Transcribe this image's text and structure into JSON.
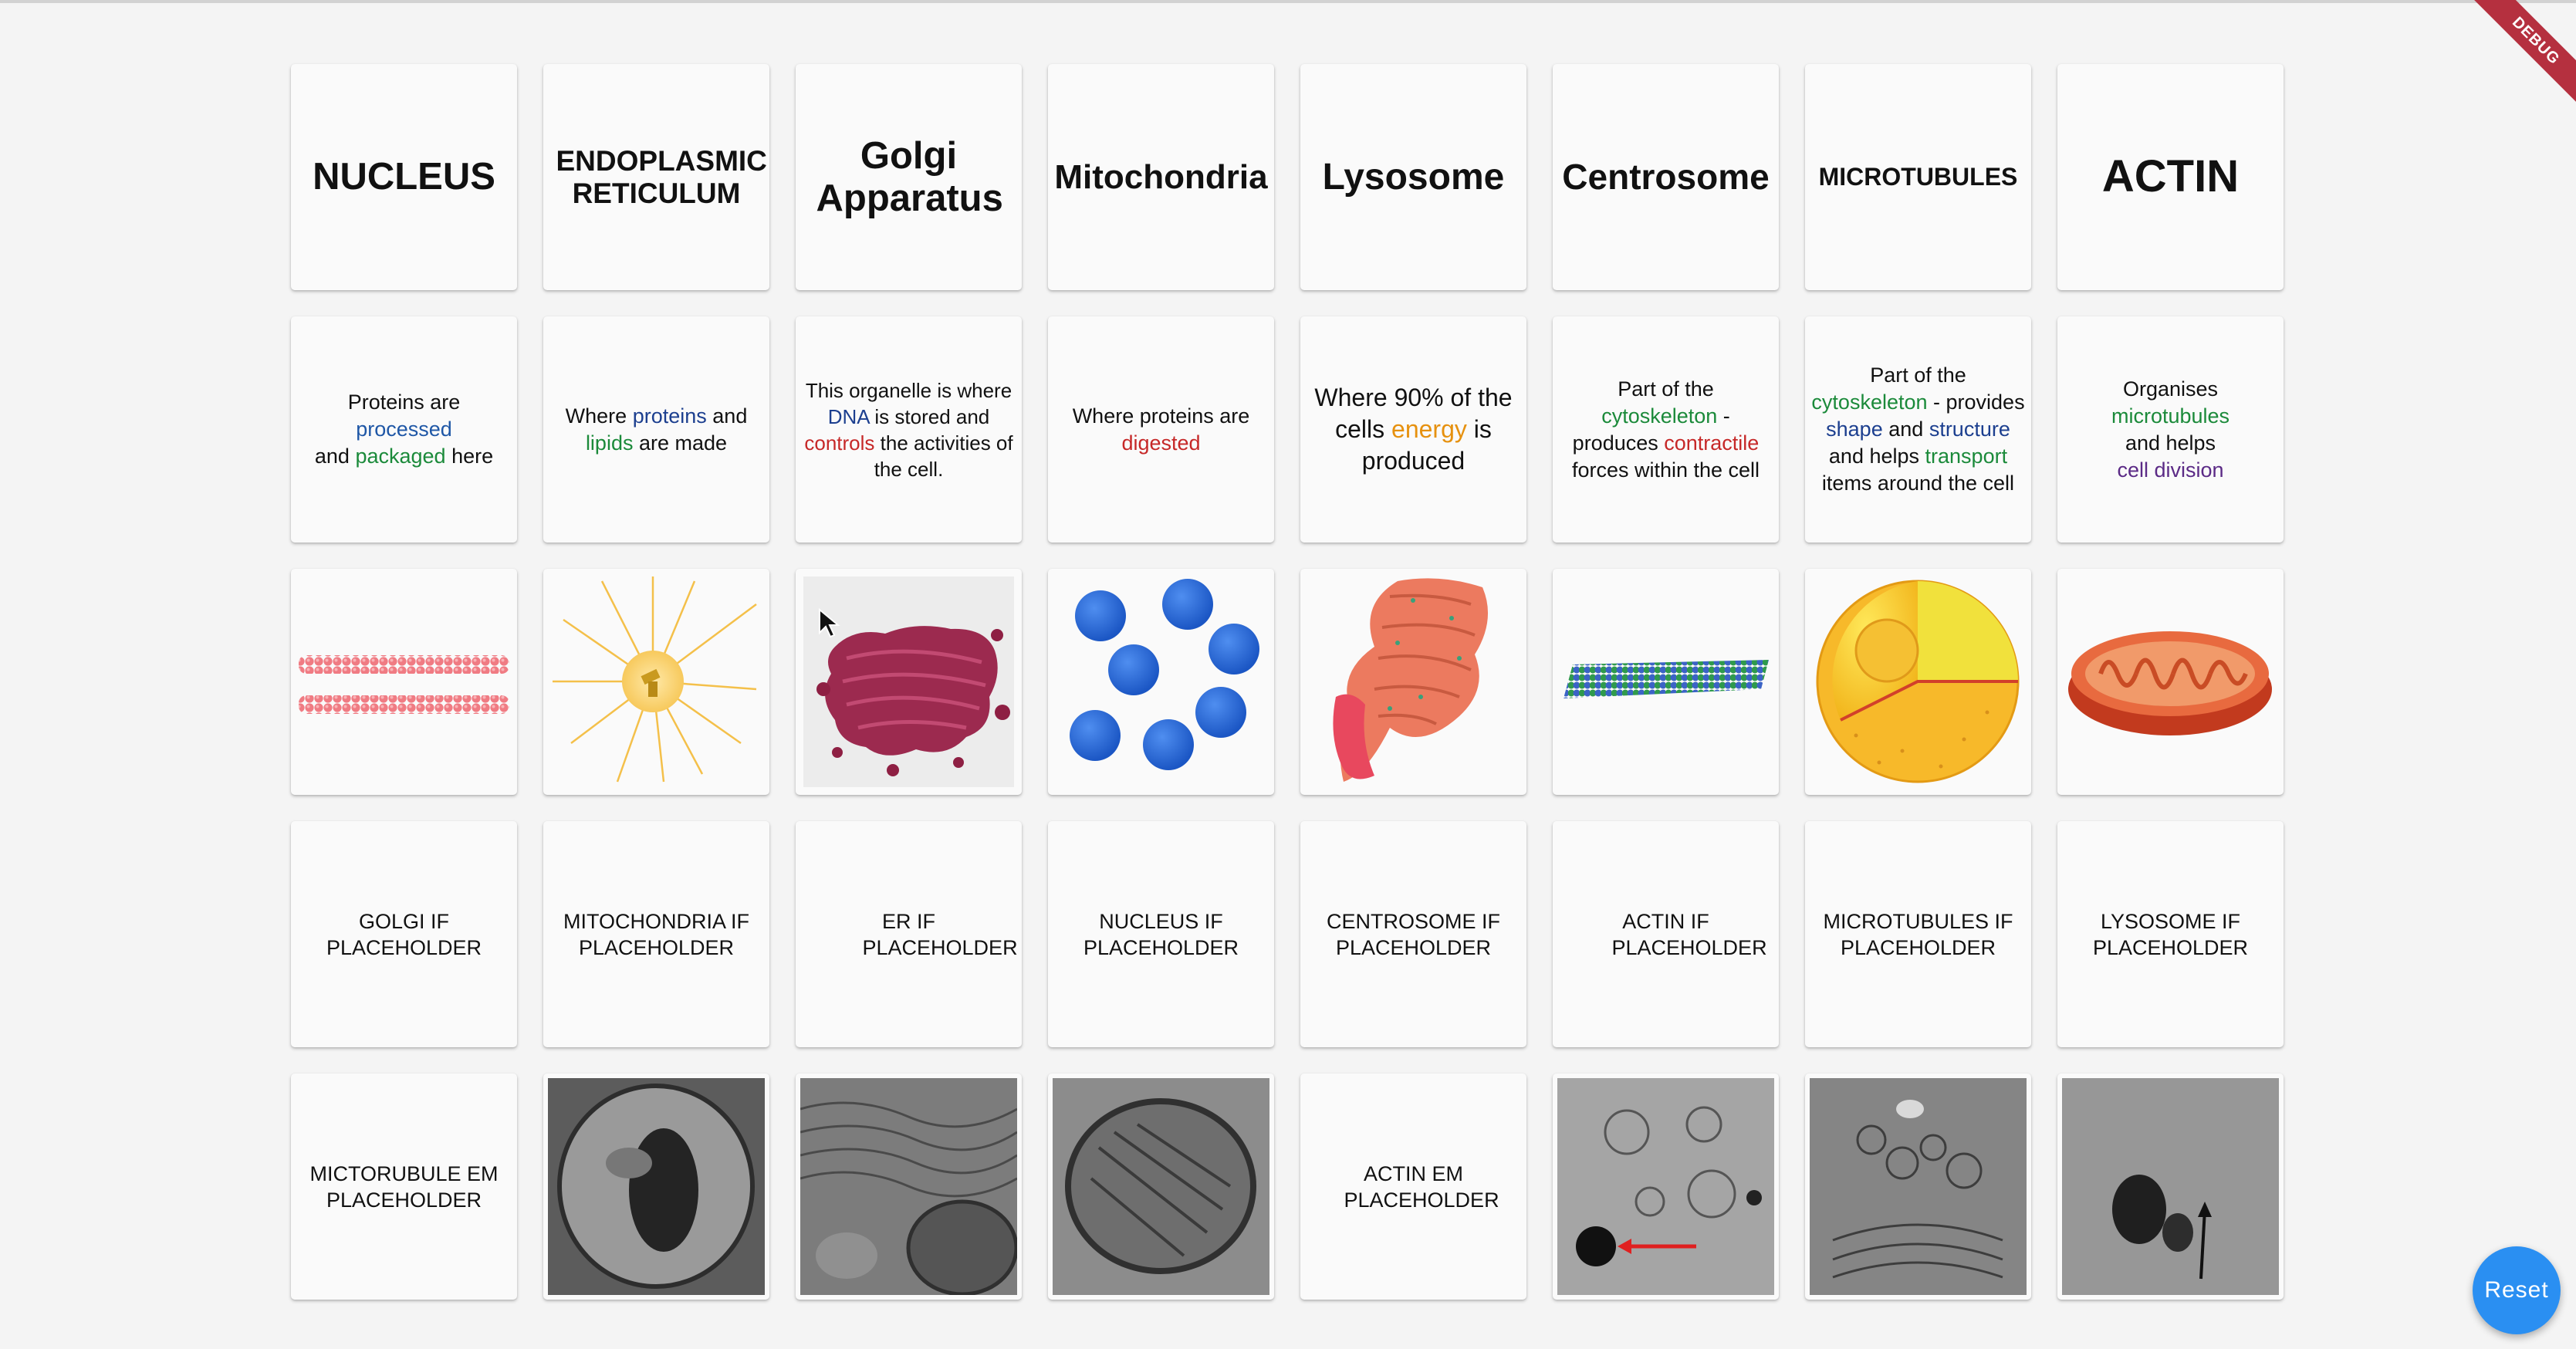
{
  "debug_banner": "DEBUG",
  "reset_button": "Reset",
  "titles": [
    "NUCLEUS",
    "ENDOPLASMIC RETICULUM",
    "Golgi Apparatus",
    "Mitochondria",
    "Lysosome",
    "Centrosome",
    "MICROTUBULES",
    "ACTIN"
  ],
  "descriptions": {
    "golgi": {
      "a": "Proteins are",
      "b": "processed",
      "c": "and",
      "d": "packaged",
      "e": "here"
    },
    "er": {
      "a": "Where",
      "b": "proteins",
      "c": "and",
      "d": "lipids",
      "e": "are made"
    },
    "nucleus": {
      "a": "This organelle is where",
      "b": "DNA",
      "c": "is stored and",
      "d": "controls",
      "e": "the activities of the cell."
    },
    "lysosome": {
      "a": "Where proteins are",
      "b": "digested"
    },
    "mitochondria": {
      "a": "Where 90% of the cells",
      "b": "energy",
      "c": "is produced"
    },
    "actin": {
      "a": "Part of the",
      "b": "cytoskeleton",
      "c": "- produces",
      "d": "contractile",
      "e": "forces within the cell"
    },
    "microtubules": {
      "a": "Part of the",
      "b": "cytoskeleton",
      "c": "- provides",
      "d": "shape",
      "e": "and",
      "f": "structure",
      "g": "and helps",
      "h": "transport",
      "i": "items around the cell"
    },
    "centrosome": {
      "a": "Organises",
      "b": "microtubules",
      "c": "and helps",
      "d": "cell division"
    }
  },
  "images": [
    "actin-filaments",
    "centrosome",
    "golgi-apparatus",
    "lysosomes",
    "endoplasmic-reticulum",
    "microtubule",
    "nucleus",
    "mitochondrion"
  ],
  "if_placeholders": [
    "GOLGI IF PLACEHOLDER",
    "MITOCHONDRIA IF PLACEHOLDER",
    "ER IF PLACEHOLDER",
    "NUCLEUS IF PLACEHOLDER",
    "CENTROSOME IF PLACEHOLDER",
    "ACTIN IF PLACEHOLDER",
    "MICROTUBULES IF PLACEHOLDER",
    "LYSOSOME IF PLACEHOLDER"
  ],
  "em_row": {
    "microtubule_placeholder": "MICTORUBULE EM PLACEHOLDER",
    "actin_placeholder": "ACTIN EM PLACEHOLDER"
  },
  "colors": {
    "blue": "#1f57a6",
    "green": "#1b8a3a",
    "navy": "#1c3f8f",
    "red": "#c62828",
    "orange": "#e6910f",
    "purple": "#5b2a86",
    "reset": "#2a8ff2",
    "debug": "#b5303f"
  }
}
